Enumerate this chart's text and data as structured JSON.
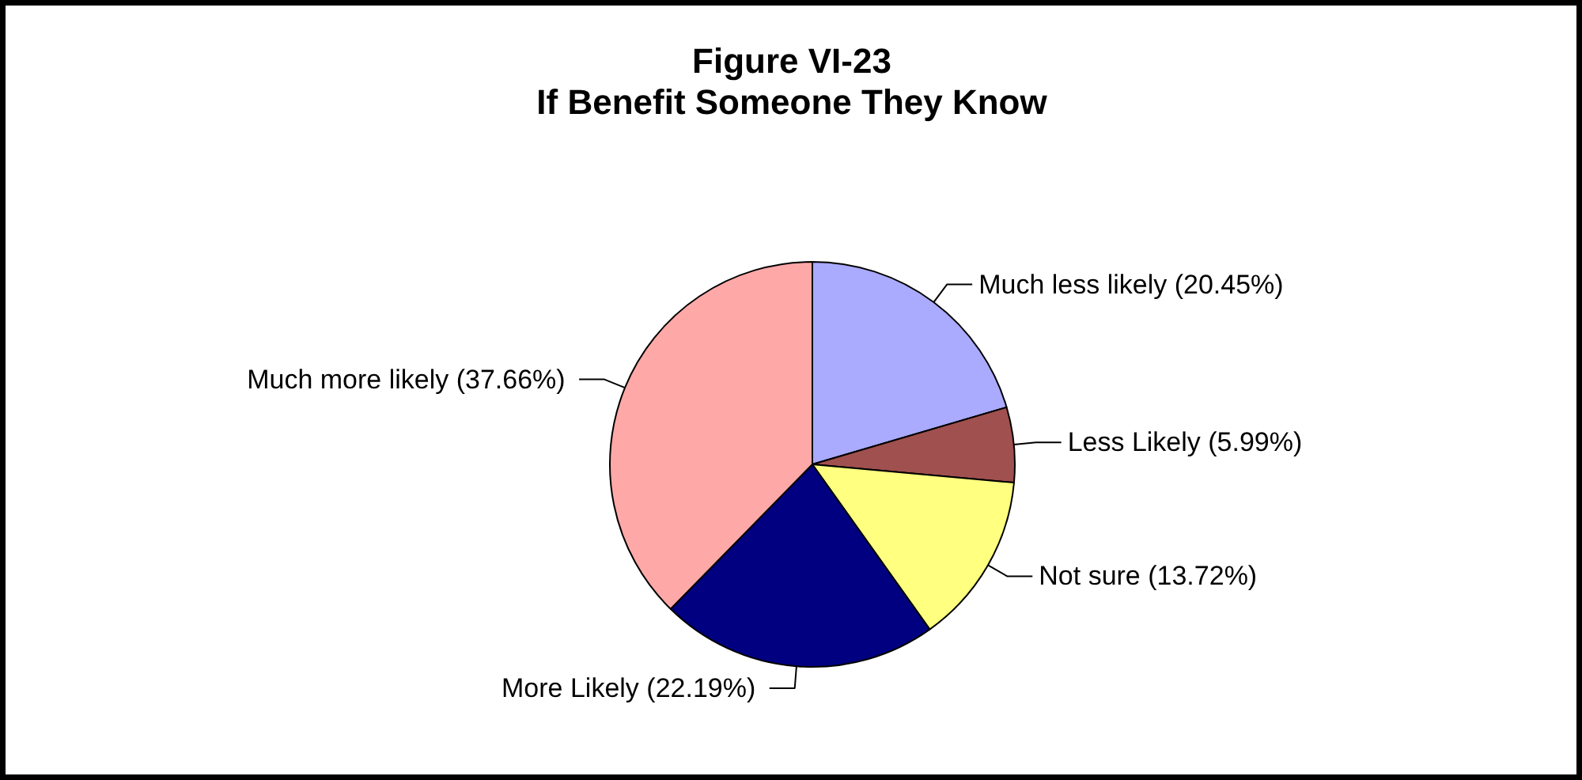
{
  "chart_data": {
    "type": "pie",
    "title": "Figure VI-23",
    "subtitle": "If Benefit Someone They Know",
    "categories": [
      "Much less likely",
      "Less Likely",
      "Not sure",
      "More Likely",
      "Much more likely"
    ],
    "values": [
      20.45,
      5.99,
      13.72,
      22.19,
      37.66
    ],
    "value_labels": [
      "(20.45%)",
      "(5.99%)",
      "(13.72%)",
      "(22.19%)",
      "(37.66%)"
    ],
    "colors": [
      "#aaaaff",
      "#a0504f",
      "#ffff80",
      "#000080",
      "#ffa8a8"
    ]
  }
}
